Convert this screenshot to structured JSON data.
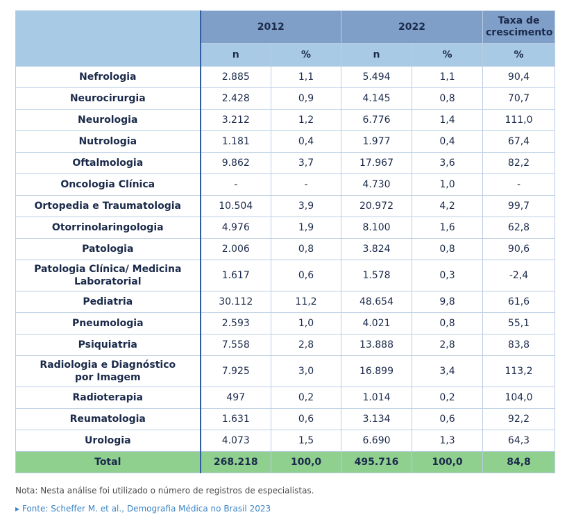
{
  "header": {
    "year1": "2012",
    "year2": "2022",
    "rate_line1": "Taxa de",
    "rate_line2": "crescimento",
    "n": "n",
    "pct": "%"
  },
  "rows": [
    {
      "name": "Nefrologia",
      "n2012": "2.885",
      "p2012": "1,1",
      "n2022": "5.494",
      "p2022": "1,1",
      "rate": "90,4"
    },
    {
      "name": "Neurocirurgia",
      "n2012": "2.428",
      "p2012": "0,9",
      "n2022": "4.145",
      "p2022": "0,8",
      "rate": "70,7"
    },
    {
      "name": "Neurologia",
      "n2012": "3.212",
      "p2012": "1,2",
      "n2022": "6.776",
      "p2022": "1,4",
      "rate": "111,0"
    },
    {
      "name": "Nutrologia",
      "n2012": "1.181",
      "p2012": "0,4",
      "n2022": "1.977",
      "p2022": "0,4",
      "rate": "67,4"
    },
    {
      "name": "Oftalmologia",
      "n2012": "9.862",
      "p2012": "3,7",
      "n2022": "17.967",
      "p2022": "3,6",
      "rate": "82,2"
    },
    {
      "name": "Oncologia Clínica",
      "n2012": "-",
      "p2012": "-",
      "n2022": "4.730",
      "p2022": "1,0",
      "rate": "-"
    },
    {
      "name": "Ortopedia e Traumatologia",
      "n2012": "10.504",
      "p2012": "3,9",
      "n2022": "20.972",
      "p2022": "4,2",
      "rate": "99,7"
    },
    {
      "name": "Otorrinolaringologia",
      "n2012": "4.976",
      "p2012": "1,9",
      "n2022": "8.100",
      "p2022": "1,6",
      "rate": "62,8"
    },
    {
      "name": "Patologia",
      "n2012": "2.006",
      "p2012": "0,8",
      "n2022": "3.824",
      "p2022": "0,8",
      "rate": "90,6"
    },
    {
      "name_line1": "Patologia Clínica/ Medicina",
      "name_line2": "Laboratorial",
      "n2012": "1.617",
      "p2012": "0,6",
      "n2022": "1.578",
      "p2022": "0,3",
      "rate": "-2,4"
    },
    {
      "name": "Pediatria",
      "n2012": "30.112",
      "p2012": "11,2",
      "n2022": "48.654",
      "p2022": "9,8",
      "rate": "61,6"
    },
    {
      "name": "Pneumologia",
      "n2012": "2.593",
      "p2012": "1,0",
      "n2022": "4.021",
      "p2022": "0,8",
      "rate": "55,1"
    },
    {
      "name": "Psiquiatria",
      "n2012": "7.558",
      "p2012": "2,8",
      "n2022": "13.888",
      "p2022": "2,8",
      "rate": "83,8"
    },
    {
      "name_line1": "Radiologia e Diagnóstico",
      "name_line2": "por Imagem",
      "n2012": "7.925",
      "p2012": "3,0",
      "n2022": "16.899",
      "p2022": "3,4",
      "rate": "113,2"
    },
    {
      "name": "Radioterapia",
      "n2012": "497",
      "p2012": "0,2",
      "n2022": "1.014",
      "p2022": "0,2",
      "rate": "104,0"
    },
    {
      "name": "Reumatologia",
      "n2012": "1.631",
      "p2012": "0,6",
      "n2022": "3.134",
      "p2022": "0,6",
      "rate": "92,2"
    },
    {
      "name": "Urologia",
      "n2012": "4.073",
      "p2012": "1,5",
      "n2022": "6.690",
      "p2022": "1,3",
      "rate": "64,3"
    }
  ],
  "total": {
    "name": "Total",
    "n2012": "268.218",
    "p2012": "100,0",
    "n2022": "495.716",
    "p2022": "100,0",
    "rate": "84,8"
  },
  "note": "Nota: Nesta análise foi utilizado o número de registros de especialistas.",
  "source": "▸ Fonte: Scheffer M. et al., Demografia Médica no Brasil 2023"
}
